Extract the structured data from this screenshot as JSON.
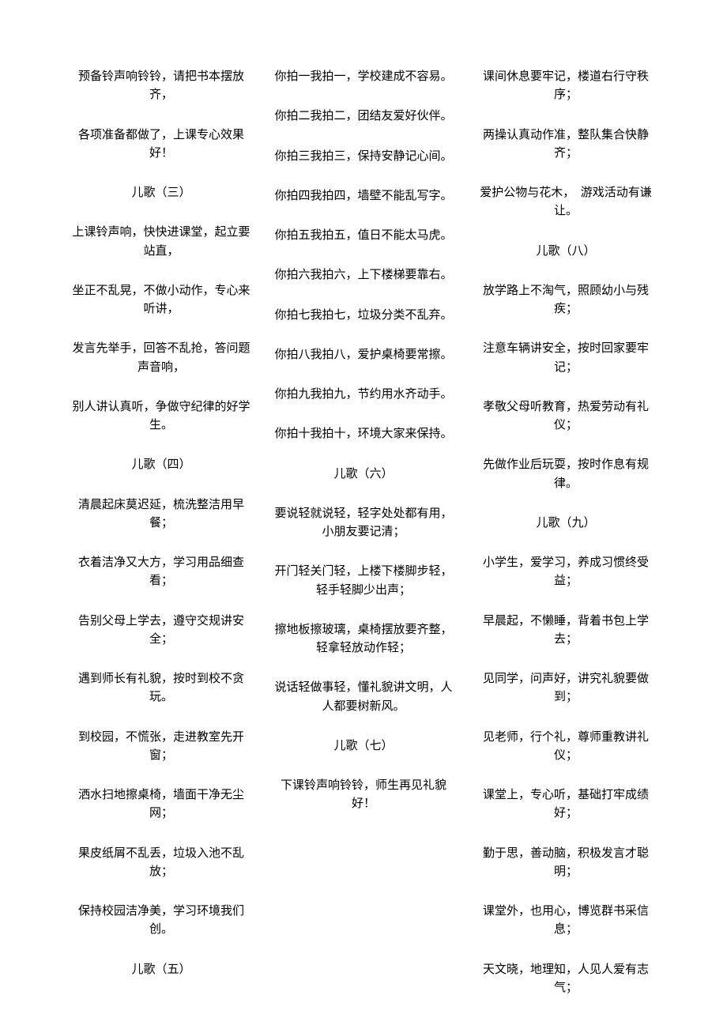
{
  "document": {
    "background_color": "#ffffff",
    "text_color": "#000000",
    "font_size": 15,
    "font_family": "SimSun",
    "columns": [
      {
        "items": [
          {
            "type": "stanza",
            "text": "预备铃声响铃铃，请把书本摆放齐，"
          },
          {
            "type": "stanza",
            "text": "各项准备都做了，上课专心效果好！"
          },
          {
            "type": "heading",
            "text": "儿歌（三）"
          },
          {
            "type": "stanza",
            "text": "上课铃声响，快快进课堂，起立要站直，"
          },
          {
            "type": "stanza",
            "text": "坐正不乱晃，不做小动作，专心来听讲，"
          },
          {
            "type": "stanza",
            "text": "发言先举手，回答不乱抢，答问题声音响，"
          },
          {
            "type": "stanza",
            "text": "别人讲认真听，争做守纪律的好学生。"
          },
          {
            "type": "heading",
            "text": "儿歌（四）"
          },
          {
            "type": "stanza",
            "text": "清晨起床莫迟延，梳洗整洁用早餐；"
          },
          {
            "type": "stanza",
            "text": "衣着洁净又大方，学习用品细查看；"
          },
          {
            "type": "stanza",
            "text": "告别父母上学去，遵守交规讲安全；"
          },
          {
            "type": "stanza",
            "text": "遇到师长有礼貌，按时到校不贪玩。"
          },
          {
            "type": "stanza",
            "text": "到校园，不慌张，走进教室先开窗；"
          },
          {
            "type": "stanza",
            "text": "洒水扫地擦桌椅，墙面干净无尘网；"
          },
          {
            "type": "stanza",
            "text": "果皮纸屑不乱丢，垃圾入池不乱放；"
          },
          {
            "type": "stanza",
            "text": "保持校园洁净美，学习环境我们创。"
          },
          {
            "type": "heading",
            "text": "儿歌（五）"
          }
        ]
      },
      {
        "items": [
          {
            "type": "stanza",
            "text": "你拍一我拍一，学校建成不容易。"
          },
          {
            "type": "stanza",
            "text": "你拍二我拍二，团结友爱好伙伴。"
          },
          {
            "type": "stanza",
            "text": "你拍三我拍三，保持安静记心间。"
          },
          {
            "type": "stanza",
            "text": "你拍四我拍四，墙壁不能乱写字。"
          },
          {
            "type": "stanza",
            "text": "你拍五我拍五，值日不能太马虎。"
          },
          {
            "type": "stanza",
            "text": "你拍六我拍六，上下楼梯要靠右。"
          },
          {
            "type": "stanza",
            "text": "你拍七我拍七，垃圾分类不乱弃。"
          },
          {
            "type": "stanza",
            "text": "你拍八我拍八，爱护桌椅要常擦。"
          },
          {
            "type": "stanza",
            "text": "你拍九我拍九，节约用水齐动手。"
          },
          {
            "type": "stanza",
            "text": "你拍十我拍十，环境大家来保持。"
          },
          {
            "type": "heading",
            "text": "儿歌（六）"
          },
          {
            "type": "stanza",
            "text": "要说轻就说轻，轻字处处都有用，小朋友要记清；"
          },
          {
            "type": "stanza",
            "text": "开门轻关门轻，上楼下楼脚步轻，轻手轻脚少出声；"
          },
          {
            "type": "stanza",
            "text": "擦地板擦玻璃，桌椅摆放要齐整，轻拿轻放动作轻；"
          },
          {
            "type": "stanza",
            "text": "说话轻做事轻，懂礼貌讲文明，人人都要树新风。"
          },
          {
            "type": "heading",
            "text": "儿歌（七）"
          },
          {
            "type": "stanza",
            "text": "下课铃声响铃铃，师生再见礼貌好！"
          }
        ]
      },
      {
        "items": [
          {
            "type": "stanza",
            "text": "课间休息要牢记，楼道右行守秩序；"
          },
          {
            "type": "stanza",
            "text": "两操认真动作准，整队集合快静齐；"
          },
          {
            "type": "stanza",
            "text": "爱护公物与花木，　游戏活动有谦让。"
          },
          {
            "type": "heading",
            "text": "儿歌（八）"
          },
          {
            "type": "stanza",
            "text": "放学路上不淘气，照顾幼小与残疾；"
          },
          {
            "type": "stanza",
            "text": "注意车辆讲安全，按时回家要牢记；"
          },
          {
            "type": "stanza",
            "text": "孝敬父母听教育，热爱劳动有礼仪；"
          },
          {
            "type": "stanza",
            "text": "先做作业后玩耍，按时作息有规律。"
          },
          {
            "type": "heading",
            "text": "儿歌（九）"
          },
          {
            "type": "stanza",
            "text": "小学生，爱学习，养成习惯终受益；"
          },
          {
            "type": "stanza",
            "text": "早晨起，不懒睡，背着书包上学去；"
          },
          {
            "type": "stanza",
            "text": "见同学，问声好，讲究礼貌要做到；"
          },
          {
            "type": "stanza",
            "text": "见老师，行个礼，尊师重教讲礼仪；"
          },
          {
            "type": "stanza",
            "text": "课堂上，专心听，基础打牢成绩好；"
          },
          {
            "type": "stanza",
            "text": "勤于思，善动脑，积极发言才聪明；"
          },
          {
            "type": "stanza",
            "text": "课堂外，也用心，博览群书采信息；"
          },
          {
            "type": "stanza",
            "text": "天文晓，地理知，人见人爱有志气；"
          }
        ]
      }
    ]
  }
}
